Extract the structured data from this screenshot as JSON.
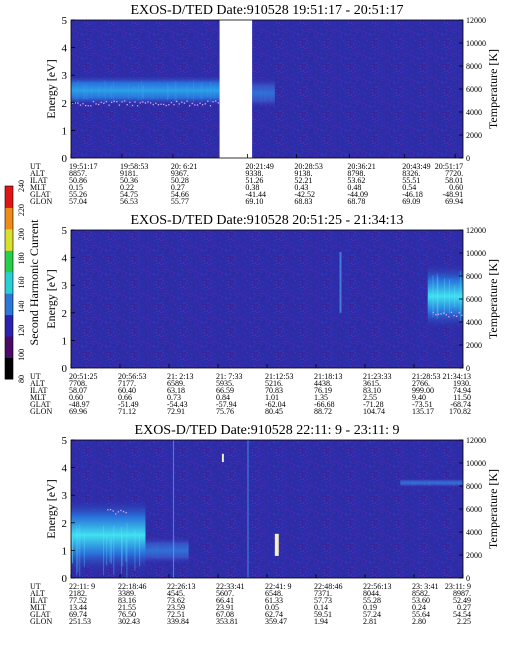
{
  "colors": {
    "background": "#2f2ca8",
    "gap": "#ffffff"
  },
  "colorbar": {
    "label": "Second Harmonic Current",
    "ticks": [
      80,
      100,
      120,
      140,
      160,
      180,
      200,
      220,
      240
    ],
    "colors": [
      "#000000",
      "#4a0a66",
      "#2b23b0",
      "#2c77d8",
      "#28d0d6",
      "#27d04a",
      "#d7e02a",
      "#f08a18",
      "#e11515"
    ]
  },
  "rows": [
    "UT",
    "ALT",
    "ILAT",
    "MLT",
    "GLAT",
    "GLON"
  ],
  "chart_data": [
    {
      "type": "heatmap",
      "title": "EXOS-D/TED  Date:910528  19:51:17 - 20:51:17",
      "ylabel": "Energy [eV]",
      "ylabel_right": "Temperature [K]",
      "ylim": [
        0,
        5
      ],
      "yticks": [
        "0",
        "1",
        "2",
        "3",
        "4",
        "5"
      ],
      "ylim_right": [
        0,
        12000
      ],
      "yticks_right": [
        "0",
        "2000",
        "4000",
        "6000",
        "8000",
        "10000",
        "12000"
      ],
      "data_gap": [
        0.379,
        0.462
      ],
      "features": [
        {
          "kind": "band",
          "x": [
            0.0,
            0.379
          ],
          "y": [
            1.9,
            3.0
          ],
          "peak_energy": 2.4,
          "intensity": 0.7
        },
        {
          "kind": "dots",
          "x": [
            0.0,
            0.379
          ],
          "temperature": 4800
        },
        {
          "kind": "band",
          "x": [
            0.462,
            0.52
          ],
          "y": [
            1.8,
            2.9
          ],
          "peak_energy": 2.2,
          "intensity": 0.25
        }
      ],
      "columns": [
        [
          "19:51:17",
          "8857.",
          "50.86",
          "0.15",
          "55.26",
          "57.04"
        ],
        [
          "19:58:53",
          "9181.",
          "50.36",
          "0.22",
          "54.75",
          "56.53"
        ],
        [
          "20: 6:21",
          "9367.",
          "50.28",
          "0.27",
          "54.66",
          "55.77"
        ],
        [
          "20:21:49",
          "9338.",
          "51.26",
          "0.38",
          "-41.44",
          "69.10"
        ],
        [
          "20:28:53",
          "9138.",
          "52.21",
          "0.43",
          "-42.52",
          "68.83"
        ],
        [
          "20:36:21",
          "8798.",
          "53.62",
          "0.48",
          "-44.09",
          "68.78"
        ],
        [
          "20:43:49",
          "8326.",
          "55.51",
          "0.54",
          "-46.18",
          "69.09"
        ],
        [
          "20:51:17",
          "7720.",
          "58.01",
          "0.60",
          "-48.91",
          "69.94"
        ]
      ],
      "column_x": [
        0.0,
        0.13,
        0.26,
        0.45,
        0.575,
        0.71,
        0.85,
        0.98
      ]
    },
    {
      "type": "heatmap",
      "title": "EXOS-D/TED  Date:910528  20:51:25 - 21:34:13",
      "ylabel": "Energy [eV]",
      "ylabel_right": "Temperature [K]",
      "ylim": [
        0,
        5
      ],
      "yticks": [
        "0",
        "1",
        "2",
        "3",
        "4",
        "5"
      ],
      "ylim_right": [
        0,
        12000
      ],
      "yticks_right": [
        "0",
        "2000",
        "4000",
        "6000",
        "8000",
        "10000",
        "12000"
      ],
      "data_gap": null,
      "features": [
        {
          "kind": "band",
          "x": [
            0.91,
            1.0
          ],
          "y": [
            1.4,
            3.8
          ],
          "peak_energy": 2.6,
          "intensity": 0.85
        },
        {
          "kind": "dots",
          "x": [
            0.92,
            1.0
          ],
          "temperature": 4700
        },
        {
          "kind": "spike",
          "x": [
            0.685,
            0.69
          ],
          "y": [
            2.0,
            4.2
          ],
          "intensity": 0.55
        }
      ],
      "columns": [
        [
          "20:51:25",
          "7708.",
          "58.07",
          "0.60",
          "-48.97",
          "69.96"
        ],
        [
          "20:56:53",
          "7177.",
          "60.40",
          "0.66",
          "-51.49",
          "71.12"
        ],
        [
          "21: 2:13",
          "6589.",
          "63.18",
          "0.73",
          "-54.43",
          "72.91"
        ],
        [
          "21: 7:33",
          "5935.",
          "66.59",
          "0.84",
          "-57.94",
          "75.76"
        ],
        [
          "21:12:53",
          "5216.",
          "70.83",
          "1.01",
          "-62.04",
          "80.45"
        ],
        [
          "21:18:13",
          "4438.",
          "76.19",
          "1.35",
          "-66.68",
          "88.72"
        ],
        [
          "21:23:33",
          "3615.",
          "83.10",
          "2.55",
          "-71.28",
          "104.74"
        ],
        [
          "21:28:53",
          "2766.",
          "999.00",
          "9.40",
          "-73.51",
          "135.17"
        ],
        [
          "21:34:13",
          "1930.",
          "74.94",
          "11.50",
          "-68.74",
          "170.82"
        ]
      ],
      "column_x": [
        0.0,
        0.125,
        0.25,
        0.375,
        0.5,
        0.625,
        0.75,
        0.875,
        1.0
      ]
    },
    {
      "type": "heatmap",
      "title": "EXOS-D/TED  Date:910528  22:11: 9 - 23:11: 9",
      "ylabel": "Energy [eV]",
      "ylabel_right": "Temperature [K]",
      "ylim": [
        0,
        5
      ],
      "yticks": [
        "0",
        "1",
        "2",
        "3",
        "4",
        "5"
      ],
      "ylim_right": [
        0,
        12000
      ],
      "yticks_right": [
        "0",
        "2000",
        "4000",
        "6000",
        "8000",
        "10000",
        "12000"
      ],
      "data_gap": null,
      "features": [
        {
          "kind": "band",
          "x": [
            0.0,
            0.19
          ],
          "y": [
            0.2,
            2.9
          ],
          "peak_energy": 1.0,
          "intensity": 0.9
        },
        {
          "kind": "dots",
          "x": [
            0.09,
            0.14
          ],
          "temperature": 5800
        },
        {
          "kind": "band",
          "x": [
            0.19,
            0.3
          ],
          "y": [
            0.5,
            1.5
          ],
          "peak_energy": 1.0,
          "intensity": 0.25
        },
        {
          "kind": "band",
          "x": [
            0.84,
            1.0
          ],
          "y": [
            3.3,
            3.6
          ],
          "peak_energy": 3.4,
          "intensity": 0.3
        },
        {
          "kind": "spike",
          "x": [
            0.52,
            0.53
          ],
          "y": [
            0.8,
            1.6
          ],
          "intensity": 1.0
        },
        {
          "kind": "spike",
          "x": [
            0.385,
            0.39
          ],
          "y": [
            4.2,
            4.5
          ],
          "intensity": 1.0
        },
        {
          "kind": "spike",
          "x": [
            0.26,
            0.263
          ],
          "y": [
            0.0,
            5.0
          ],
          "intensity": 0.25
        },
        {
          "kind": "spike",
          "x": [
            0.45,
            0.453
          ],
          "y": [
            0.0,
            5.0
          ],
          "intensity": 0.25
        }
      ],
      "columns": [
        [
          "22:11: 9",
          "2182.",
          "77.52",
          "13.44",
          "69.74",
          "251.53"
        ],
        [
          "22:18:46",
          "3389.",
          "83.16",
          "21.55",
          "76.50",
          "302.43"
        ],
        [
          "22:26:13",
          "4545.",
          "73.62",
          "23.59",
          "72.51",
          "339.84"
        ],
        [
          "22:33:41",
          "5607.",
          "66.41",
          "23.91",
          "67.08",
          "353.81"
        ],
        [
          "22:41: 9",
          "6548.",
          "61.33",
          "0.05",
          "62.74",
          "359.47"
        ],
        [
          "22:48:46",
          "7371.",
          "57.73",
          "0.14",
          "59.51",
          "1.94"
        ],
        [
          "22:56:13",
          "8044.",
          "55.28",
          "0.19",
          "57.24",
          "2.81"
        ],
        [
          "23: 3:41",
          "8582.",
          "53.60",
          "0.24",
          "55.64",
          "2.80"
        ],
        [
          "23:11: 9",
          "8987.",
          "52.49",
          "0.27",
          "54.54",
          "2.25"
        ]
      ],
      "column_x": [
        0.0,
        0.125,
        0.25,
        0.375,
        0.5,
        0.625,
        0.75,
        0.875,
        1.0
      ]
    }
  ]
}
